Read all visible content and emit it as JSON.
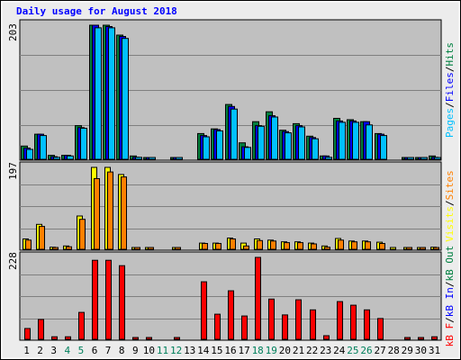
{
  "chart_data": [
    {
      "type": "bar",
      "title": "Daily usage for August 2018",
      "panel": "hits-files-pages",
      "ymax_label": "203",
      "right_label": [
        {
          "text": "Pages",
          "color": "#00c0ff"
        },
        {
          "text": "/",
          "color": "#000000"
        },
        {
          "text": "Files",
          "color": "#0000ff"
        },
        {
          "text": "/",
          "color": "#000000"
        },
        {
          "text": "Hits",
          "color": "#008040"
        }
      ],
      "categories": [
        "1",
        "2",
        "3",
        "4",
        "5",
        "6",
        "7",
        "8",
        "9",
        "10",
        "11",
        "12",
        "13",
        "14",
        "15",
        "16",
        "17",
        "18",
        "19",
        "20",
        "21",
        "22",
        "23",
        "24",
        "25",
        "26",
        "27",
        "28",
        "29",
        "30",
        "31"
      ],
      "series": [
        {
          "name": "Hits",
          "color": "#008040",
          "values": [
            20,
            38,
            6,
            6,
            51,
            203,
            203,
            188,
            5,
            2,
            0,
            2,
            0,
            39,
            46,
            83,
            25,
            57,
            72,
            44,
            54,
            35,
            5,
            62,
            60,
            57,
            39,
            0,
            2,
            2,
            5
          ]
        },
        {
          "name": "Files",
          "color": "#0000ff",
          "values": [
            17,
            38,
            4,
            6,
            48,
            203,
            201,
            186,
            3,
            2,
            0,
            1,
            0,
            36,
            45,
            80,
            19,
            51,
            66,
            42,
            51,
            33,
            5,
            58,
            58,
            57,
            38,
            0,
            1,
            1,
            3
          ]
        },
        {
          "name": "Pages",
          "color": "#00c0ff",
          "values": [
            15,
            36,
            3,
            5,
            47,
            199,
            199,
            183,
            3,
            1,
            0,
            1,
            0,
            34,
            43,
            76,
            18,
            50,
            64,
            40,
            49,
            31,
            3,
            56,
            56,
            52,
            36,
            0,
            1,
            1,
            2
          ]
        }
      ],
      "ylim": [
        0,
        203
      ]
    },
    {
      "type": "bar",
      "panel": "visits-sites",
      "ymax_label": "197",
      "right_label": [
        {
          "text": "Visits",
          "color": "#ffff00"
        },
        {
          "text": "/",
          "color": "#000000"
        },
        {
          "text": "Sites",
          "color": "#ff8000"
        }
      ],
      "categories": [
        "1",
        "2",
        "3",
        "4",
        "5",
        "6",
        "7",
        "8",
        "9",
        "10",
        "11",
        "12",
        "13",
        "14",
        "15",
        "16",
        "17",
        "18",
        "19",
        "20",
        "21",
        "22",
        "23",
        "24",
        "25",
        "26",
        "27",
        "28",
        "29",
        "30",
        "31"
      ],
      "series": [
        {
          "name": "Visits",
          "color": "#ffff00",
          "values": [
            25,
            60,
            5,
            8,
            80,
            197,
            197,
            180,
            3,
            2,
            0,
            2,
            0,
            15,
            15,
            27,
            15,
            25,
            22,
            18,
            18,
            15,
            8,
            26,
            20,
            20,
            17,
            1,
            1,
            1,
            5
          ]
        },
        {
          "name": "Sites",
          "color": "#ff8000",
          "values": [
            22,
            55,
            4,
            6,
            72,
            170,
            186,
            174,
            2,
            1,
            0,
            1,
            0,
            14,
            14,
            25,
            8,
            21,
            20,
            16,
            16,
            13,
            5,
            22,
            18,
            18,
            14,
            0,
            1,
            1,
            3
          ]
        }
      ],
      "ylim": [
        0,
        197
      ]
    },
    {
      "type": "bar",
      "panel": "kbytes",
      "ymax_label": "228",
      "right_label": [
        {
          "text": "kB F",
          "color": "#ff0000"
        },
        {
          "text": "/",
          "color": "#000000"
        },
        {
          "text": "kB In",
          "color": "#0000ff"
        },
        {
          "text": "/",
          "color": "#000000"
        },
        {
          "text": "kB Out",
          "color": "#008040"
        }
      ],
      "categories": [
        "1",
        "2",
        "3",
        "4",
        "5",
        "6",
        "7",
        "8",
        "9",
        "10",
        "11",
        "12",
        "13",
        "14",
        "15",
        "16",
        "17",
        "18",
        "19",
        "20",
        "21",
        "22",
        "23",
        "24",
        "25",
        "26",
        "27",
        "28",
        "29",
        "30",
        "31"
      ],
      "series": [
        {
          "name": "kB F",
          "color": "#ff0000",
          "values": [
            30,
            55,
            7,
            7,
            75,
            220,
            220,
            205,
            4,
            4,
            0,
            4,
            0,
            160,
            70,
            135,
            65,
            228,
            112,
            68,
            110,
            82,
            10,
            105,
            95,
            82,
            58,
            0,
            4,
            4,
            7
          ]
        }
      ],
      "ylim": [
        0,
        228
      ]
    }
  ],
  "weekend_days": [
    "4",
    "5",
    "11",
    "12",
    "18",
    "19",
    "25",
    "26"
  ],
  "colors": {
    "background": "#ececec",
    "plot_background": "#c0c0c0",
    "title": "#0000ff",
    "weekday_label": "#000000",
    "weekend_label": "#00805c",
    "grid": "#808080"
  }
}
